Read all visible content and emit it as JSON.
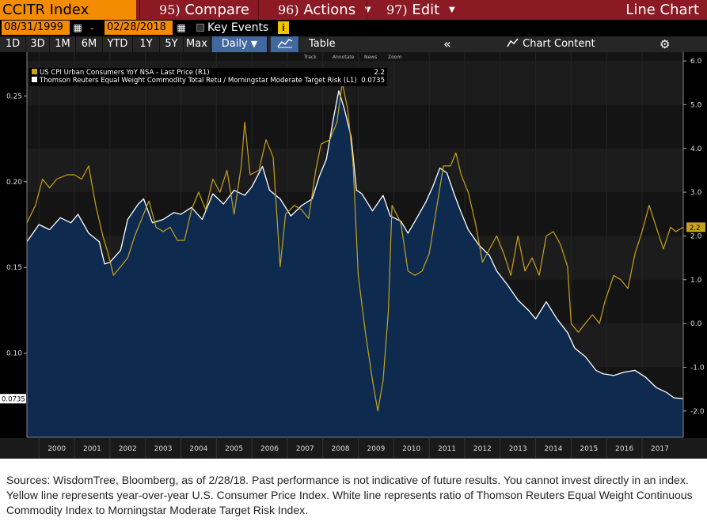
{
  "titlebar": {
    "ticker": "CCITR Index",
    "menu": [
      {
        "num": "95)",
        "label": "Compare",
        "caret": false
      },
      {
        "num": "96)",
        "label": "Actions",
        "caret": true
      },
      {
        "num": "97)",
        "label": "Edit",
        "caret": true
      }
    ],
    "view": "Line Chart"
  },
  "datebar": {
    "start": "08/31/1999",
    "separator": "-",
    "end": "02/28/2018",
    "key_events": "Key Events",
    "info": "i"
  },
  "toolbar": {
    "periods": [
      "1D",
      "3D",
      "1M",
      "6M",
      "YTD",
      "1Y",
      "5Y",
      "Max"
    ],
    "frequency": "Daily",
    "table": "Table",
    "collapse": "«",
    "chart_content": "Chart Content",
    "settings_icon": "gear-icon"
  },
  "chart_tools": [
    "Track",
    "Annotate",
    "News",
    "Zoom"
  ],
  "legend": [
    {
      "label": "US CPI Urban Consumers YoY NSA - Last Price (R1)",
      "value": "2.2",
      "color": "#c8a21c"
    },
    {
      "label": "Thomson Reuters Equal Weight Commodity Total Retu / Morningstar Moderate Target Risk (L1)",
      "value": "0.0735",
      "color": "#ffffff"
    }
  ],
  "chart_data": {
    "type": "line",
    "x_range": [
      1999.66,
      2018.16
    ],
    "x_ticks": [
      "2000",
      "2001",
      "2002",
      "2003",
      "2004",
      "2005",
      "2006",
      "2007",
      "2008",
      "2009",
      "2010",
      "2011",
      "2012",
      "2013",
      "2014",
      "2015",
      "2016",
      "2017"
    ],
    "left_axis": {
      "ticks": [
        "0.25",
        "0.20",
        "0.15",
        "0.10"
      ],
      "tick_values": [
        0.25,
        0.2,
        0.15,
        0.1
      ],
      "range": [
        0.051,
        0.2755
      ],
      "last_label": "0.0735"
    },
    "right_axis": {
      "ticks": [
        "6.0",
        "5.0",
        "4.0",
        "3.0",
        "2.0",
        "1.0",
        "0.0",
        "-1.0",
        "-2.0"
      ],
      "tick_values": [
        6,
        5,
        4,
        3,
        2,
        1,
        0,
        -1,
        -2
      ],
      "range": [
        -2.6,
        6.2
      ],
      "last_label": "2.2"
    },
    "series": [
      {
        "name": "Thomson Reuters Equal Weight Commodity Total Retu / Morningstar Moderate Target Risk",
        "axis": "left",
        "style": "area",
        "color": "#ffffff",
        "fill": "#0e2a4e",
        "x": [
          1999.66,
          2000.0,
          2000.3,
          2000.6,
          2000.9,
          2001.1,
          2001.4,
          2001.7,
          2001.85,
          2002.0,
          2002.3,
          2002.5,
          2002.8,
          2002.95,
          2003.2,
          2003.5,
          2003.8,
          2004.0,
          2004.3,
          2004.6,
          2004.9,
          2005.2,
          2005.5,
          2005.8,
          2006.0,
          2006.3,
          2006.5,
          2006.8,
          2007.1,
          2007.4,
          2007.7,
          2007.9,
          2008.1,
          2008.3,
          2008.45,
          2008.6,
          2008.8,
          2008.95,
          2009.1,
          2009.4,
          2009.7,
          2009.9,
          2010.2,
          2010.4,
          2010.6,
          2010.9,
          2011.1,
          2011.3,
          2011.5,
          2011.7,
          2011.9,
          2012.1,
          2012.4,
          2012.7,
          2012.9,
          2013.2,
          2013.5,
          2013.8,
          2014.0,
          2014.3,
          2014.6,
          2014.9,
          2015.1,
          2015.4,
          2015.7,
          2015.9,
          2016.2,
          2016.5,
          2016.8,
          2017.1,
          2017.4,
          2017.7,
          2017.9,
          2018.16
        ],
        "values": [
          0.165,
          0.175,
          0.172,
          0.179,
          0.176,
          0.181,
          0.17,
          0.165,
          0.152,
          0.153,
          0.16,
          0.178,
          0.187,
          0.19,
          0.176,
          0.178,
          0.182,
          0.181,
          0.185,
          0.178,
          0.193,
          0.187,
          0.195,
          0.192,
          0.197,
          0.209,
          0.195,
          0.19,
          0.18,
          0.186,
          0.19,
          0.203,
          0.213,
          0.237,
          0.253,
          0.243,
          0.226,
          0.195,
          0.193,
          0.183,
          0.192,
          0.18,
          0.177,
          0.17,
          0.177,
          0.188,
          0.197,
          0.208,
          0.205,
          0.193,
          0.182,
          0.172,
          0.163,
          0.157,
          0.148,
          0.14,
          0.131,
          0.125,
          0.12,
          0.13,
          0.12,
          0.112,
          0.103,
          0.098,
          0.09,
          0.088,
          0.087,
          0.089,
          0.09,
          0.086,
          0.08,
          0.077,
          0.074,
          0.0735
        ]
      },
      {
        "name": "US CPI Urban Consumers YoY NSA - Last Price",
        "axis": "right",
        "style": "line",
        "color": "#c8a21c",
        "x": [
          1999.66,
          1999.9,
          2000.1,
          2000.3,
          2000.5,
          2000.8,
          2001.0,
          2001.2,
          2001.4,
          2001.6,
          2001.8,
          2001.95,
          2002.1,
          2002.3,
          2002.5,
          2002.7,
          2002.9,
          2003.1,
          2003.3,
          2003.5,
          2003.7,
          2003.9,
          2004.1,
          2004.3,
          2004.5,
          2004.7,
          2004.9,
          2005.1,
          2005.3,
          2005.5,
          2005.7,
          2005.8,
          2005.95,
          2006.2,
          2006.4,
          2006.6,
          2006.8,
          2006.95,
          2007.2,
          2007.4,
          2007.6,
          2007.8,
          2007.95,
          2008.2,
          2008.4,
          2008.55,
          2008.7,
          2008.85,
          2009.0,
          2009.2,
          2009.4,
          2009.55,
          2009.7,
          2009.85,
          2009.95,
          2010.2,
          2010.4,
          2010.6,
          2010.8,
          2011.0,
          2011.2,
          2011.4,
          2011.6,
          2011.75,
          2011.9,
          2012.1,
          2012.3,
          2012.5,
          2012.7,
          2012.9,
          2013.1,
          2013.3,
          2013.5,
          2013.7,
          2013.9,
          2014.1,
          2014.3,
          2014.5,
          2014.7,
          2014.9,
          2015.0,
          2015.2,
          2015.4,
          2015.6,
          2015.8,
          2015.95,
          2016.2,
          2016.4,
          2016.6,
          2016.8,
          2017.0,
          2017.2,
          2017.4,
          2017.6,
          2017.8,
          2017.95,
          2018.16
        ],
        "values": [
          2.3,
          2.7,
          3.3,
          3.1,
          3.3,
          3.4,
          3.4,
          3.3,
          3.6,
          2.7,
          2.0,
          1.6,
          1.1,
          1.3,
          1.5,
          2.0,
          2.4,
          2.8,
          2.2,
          2.1,
          2.2,
          1.9,
          1.9,
          2.6,
          3.0,
          2.6,
          3.3,
          3.0,
          3.5,
          2.5,
          3.6,
          4.6,
          3.4,
          3.5,
          4.2,
          3.8,
          1.3,
          2.5,
          2.7,
          2.6,
          2.4,
          3.5,
          4.1,
          4.2,
          4.6,
          5.5,
          4.9,
          3.7,
          1.1,
          -0.2,
          -1.3,
          -2.0,
          -1.3,
          0.3,
          2.7,
          2.3,
          1.2,
          1.1,
          1.2,
          1.6,
          2.6,
          3.6,
          3.6,
          3.9,
          3.4,
          3.0,
          2.3,
          1.4,
          1.7,
          2.0,
          1.6,
          1.1,
          2.0,
          1.2,
          1.5,
          1.1,
          2.0,
          2.1,
          1.8,
          1.3,
          0.0,
          -0.2,
          0.0,
          0.2,
          0.0,
          0.5,
          1.1,
          1.0,
          0.8,
          1.6,
          2.1,
          2.7,
          2.2,
          1.7,
          2.2,
          2.1,
          2.2
        ]
      }
    ]
  },
  "caption": [
    "Sources: WisdomTree, Bloomberg, as of 2/28/18. Past performance is not indicative of future results. You cannot invest directly in an index.",
    "Yellow line represents year-over-year U.S. Consumer Price Index. White line represents ratio of Thomson Reuters Equal Weight Continuous Commodity Index to Morningstar Moderate Target Risk Index."
  ]
}
